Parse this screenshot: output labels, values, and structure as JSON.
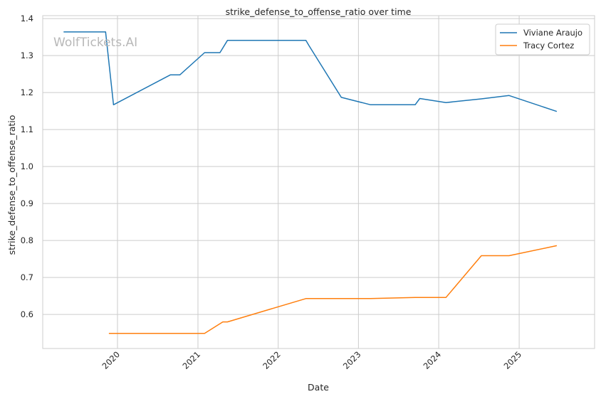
{
  "chart_data": {
    "type": "line",
    "title": "strike_defense_to_offense_ratio over time",
    "xlabel": "Date",
    "ylabel": "strike_defense_to_offense_ratio",
    "watermark": "WolfTickets.AI",
    "x_ticks": [
      "2020",
      "2021",
      "2022",
      "2023",
      "2024",
      "2025"
    ],
    "y_ticks": [
      "0.6",
      "0.7",
      "0.8",
      "0.9",
      "1.0",
      "1.1",
      "1.2",
      "1.3",
      "1.4"
    ],
    "xlim": [
      "2019-01-26",
      "2025-12-10"
    ],
    "ylim": [
      0.508,
      1.408
    ],
    "grid": true,
    "legend_position": "top-right",
    "series": [
      {
        "name": "Viviane Araujo",
        "color": "#1f77b4",
        "points": [
          [
            "2019-05-01",
            1.364
          ],
          [
            "2019-11-08",
            1.364
          ],
          [
            "2019-12-14",
            1.167
          ],
          [
            "2020-08-29",
            1.248
          ],
          [
            "2020-10-11",
            1.248
          ],
          [
            "2021-01-31",
            1.308
          ],
          [
            "2021-04-11",
            1.308
          ],
          [
            "2021-05-15",
            1.341
          ],
          [
            "2022-05-07",
            1.341
          ],
          [
            "2022-05-21",
            1.327
          ],
          [
            "2022-10-15",
            1.187
          ],
          [
            "2023-02-25",
            1.167
          ],
          [
            "2023-09-16",
            1.167
          ],
          [
            "2023-10-07",
            1.184
          ],
          [
            "2024-02-03",
            1.173
          ],
          [
            "2024-07-13",
            1.183
          ],
          [
            "2024-11-16",
            1.192
          ],
          [
            "2025-06-21",
            1.149
          ]
        ]
      },
      {
        "name": "Tracy Cortez",
        "color": "#ff7f0e",
        "points": [
          [
            "2019-11-23",
            0.549
          ],
          [
            "2021-01-31",
            0.549
          ],
          [
            "2021-04-24",
            0.58
          ],
          [
            "2021-05-15",
            0.58
          ],
          [
            "2022-05-07",
            0.643
          ],
          [
            "2023-02-25",
            0.643
          ],
          [
            "2023-09-16",
            0.646
          ],
          [
            "2024-02-03",
            0.646
          ],
          [
            "2024-07-13",
            0.759
          ],
          [
            "2024-11-16",
            0.759
          ],
          [
            "2025-06-21",
            0.786
          ]
        ]
      }
    ]
  }
}
